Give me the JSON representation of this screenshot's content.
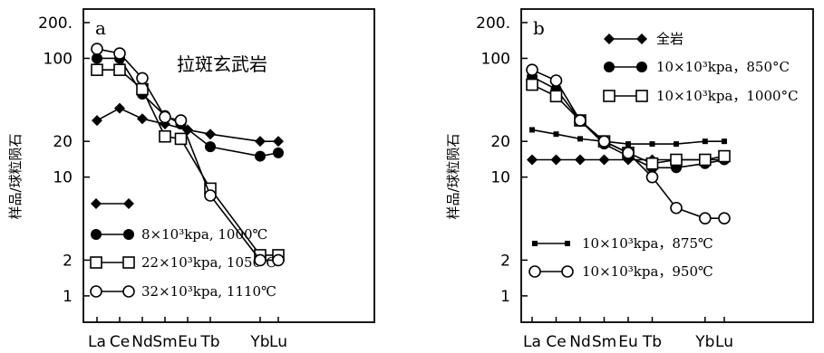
{
  "chart_data": [
    {
      "type": "line",
      "panel_label": "a",
      "annotation": "拉斑玄武岩",
      "ylabel": "样品/球粒陨石",
      "yscale": "log",
      "ylim": [
        0.6,
        260
      ],
      "yticks": [
        1,
        2,
        10,
        20,
        100,
        200
      ],
      "ytick_labels": [
        "1",
        "2",
        "10",
        "20",
        "100",
        "200."
      ],
      "categories": [
        "La",
        "Ce",
        "Nd",
        "Sm",
        "Eu",
        "Tb",
        "Yb",
        "Lu"
      ],
      "x_positions": [
        0,
        1,
        2,
        3,
        4,
        5,
        7.2,
        8
      ],
      "series": [
        {
          "name": "",
          "marker": "diamond",
          "x": [
            0,
            1,
            2,
            3,
            4,
            5,
            7.2,
            8
          ],
          "values": [
            30,
            38,
            31,
            28,
            25,
            23,
            20,
            20
          ]
        },
        {
          "name": "8×10³kpa, 1000℃",
          "marker": "filled-circle",
          "x": [
            0,
            1,
            2,
            3,
            3.7,
            5,
            7.2,
            8
          ],
          "values": [
            100,
            100,
            50,
            33,
            28,
            18,
            15,
            16
          ]
        },
        {
          "name": "22×10³kpa, 1050℃",
          "marker": "open-square",
          "x": [
            0,
            1,
            2,
            3,
            3.7,
            5,
            7.2,
            8
          ],
          "values": [
            80,
            80,
            55,
            22,
            21,
            8,
            2.2,
            2.2
          ]
        },
        {
          "name": "32×10³kpa, 1110℃",
          "marker": "open-circle",
          "x": [
            0,
            1,
            2,
            3,
            3.7,
            5,
            7.2,
            8
          ],
          "values": [
            120,
            110,
            68,
            32,
            30,
            7,
            2,
            2
          ]
        }
      ]
    },
    {
      "type": "line",
      "panel_label": "b",
      "ylabel": "样品/球粒陨石",
      "yscale": "log",
      "ylim": [
        0.6,
        260
      ],
      "yticks": [
        1,
        2,
        10,
        20,
        100,
        200
      ],
      "ytick_labels": [
        "1",
        "2",
        "10",
        "20",
        "100",
        "200."
      ],
      "categories": [
        "La",
        "Ce",
        "Nd",
        "Sm",
        "Eu",
        "Tb",
        "Yb",
        "Lu"
      ],
      "x_positions": [
        0,
        1,
        2,
        3,
        4,
        5,
        7.2,
        8
      ],
      "series": [
        {
          "name": "全岩",
          "marker": "diamond",
          "x": [
            0,
            1,
            2,
            3,
            4,
            5,
            6,
            7.2,
            8
          ],
          "values": [
            14,
            14,
            14,
            14,
            14,
            14,
            14,
            14,
            14
          ]
        },
        {
          "name": "10×10³kpa，850°C",
          "marker": "filled-circle",
          "x": [
            0,
            1,
            2,
            3,
            4,
            5,
            6,
            7.2,
            8
          ],
          "values": [
            70,
            55,
            30,
            19,
            15,
            12,
            12,
            13,
            14
          ]
        },
        {
          "name": "10×10³kpa，1000°C",
          "marker": "open-square",
          "x": [
            0,
            1,
            2,
            3,
            4,
            5,
            6,
            7.2,
            8
          ],
          "values": [
            60,
            48,
            30,
            20,
            16,
            13,
            14,
            14,
            15
          ]
        },
        {
          "name": "10×10³kpa，875℃",
          "marker": "filled-square",
          "x": [
            0,
            1,
            2,
            3,
            4,
            5,
            6,
            7.2,
            8
          ],
          "values": [
            25,
            23,
            21,
            20,
            19,
            19,
            19,
            20,
            20
          ]
        },
        {
          "name": "10×10³kpa，950℃",
          "marker": "open-circle",
          "x": [
            0,
            1,
            2,
            3,
            4,
            5,
            6,
            7.2,
            8
          ],
          "values": [
            80,
            65,
            30,
            20,
            16,
            10,
            5.5,
            4.5,
            4.5
          ]
        }
      ]
    }
  ]
}
